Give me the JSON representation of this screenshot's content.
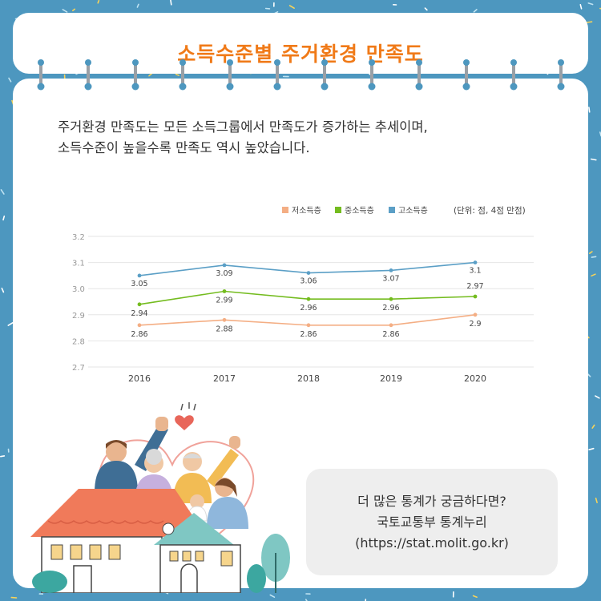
{
  "page": {
    "title": "소득수준별 주거환경 만족도",
    "intro_lines": [
      "주거환경 만족도는 모든 소득그룹에서 만족도가 증가하는 추세이며,",
      "소득수준이 높을수록 만족도 역시 높았습니다."
    ],
    "info_lines": [
      "더 많은 통계가 궁금하다면?",
      "국토교통부 통계누리",
      "(https://stat.molit.go.kr)"
    ],
    "colors": {
      "background": "#4d97bf",
      "title": "#f07a18",
      "card": "#ffffff",
      "info_box": "#eeeeee"
    },
    "illustration": "family-waving-from-houses-illustration"
  },
  "chart_data": {
    "type": "line",
    "unit_note": "(단위: 점, 4점 만점)",
    "x": [
      "2016",
      "2017",
      "2018",
      "2019",
      "2020"
    ],
    "ylim": [
      2.7,
      3.2
    ],
    "yticks": [
      "2.7",
      "2.8",
      "2.9",
      "3.0",
      "3.1",
      "3.2"
    ],
    "grid": true,
    "legend_position": "top-right",
    "series": [
      {
        "name": "저소득층",
        "color": "#f4ae84",
        "values": [
          2.86,
          2.88,
          2.86,
          2.86,
          2.9
        ],
        "labels": [
          "2.86",
          "2.88",
          "2.86",
          "2.86",
          "2.9"
        ]
      },
      {
        "name": "중소득층",
        "color": "#74bc1f",
        "values": [
          2.94,
          2.99,
          2.96,
          2.96,
          2.97
        ],
        "labels": [
          "2.94",
          "2.99",
          "2.96",
          "2.96",
          "2.97"
        ]
      },
      {
        "name": "고소득층",
        "color": "#5b9fc6",
        "values": [
          3.05,
          3.09,
          3.06,
          3.07,
          3.1
        ],
        "labels": [
          "3.05",
          "3.09",
          "3.06",
          "3.07",
          "3.1"
        ]
      }
    ]
  }
}
